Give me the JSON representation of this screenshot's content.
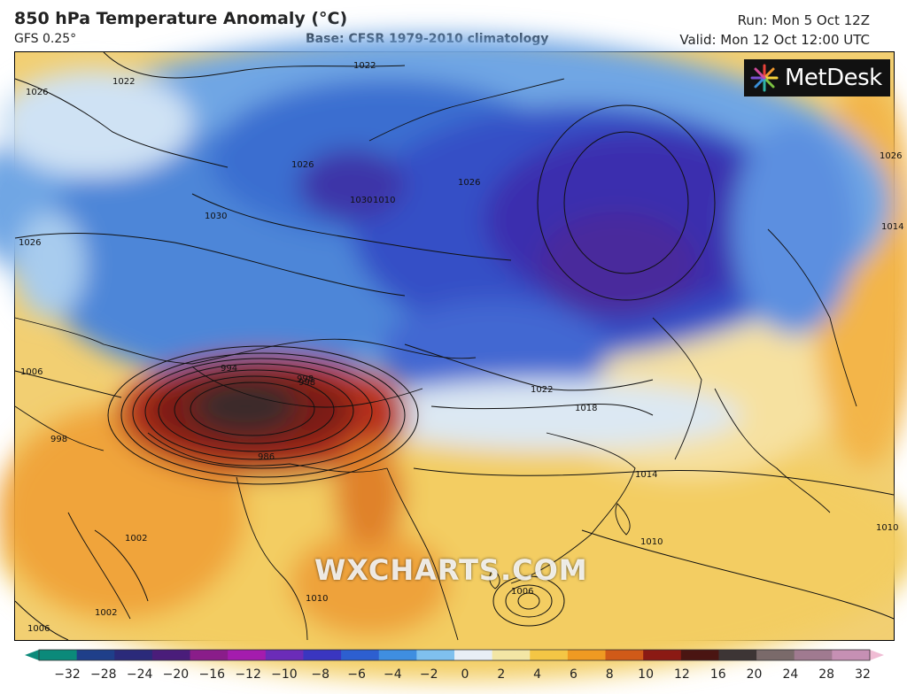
{
  "header": {
    "title": "850 hPa Temperature Anomaly (°C)",
    "model": "GFS 0.25°",
    "base": "Base: CFSR 1979-2010 climatology",
    "run": "Run: Mon 5 Oct 12Z",
    "valid": "Valid: Mon 12 Oct 12:00 UTC"
  },
  "logo": {
    "text": "MetDesk",
    "icon": "metdesk-burst-icon"
  },
  "watermark": "WXCHARTS.COM",
  "isobar_labels": [
    "1022",
    "1022",
    "1026",
    "1026",
    "1030",
    "1030",
    "1026",
    "1026",
    "1026",
    "1022",
    "1018",
    "1014",
    "1010",
    "1010",
    "1010",
    "1014",
    "1006",
    "998",
    "1002",
    "1002",
    "1006",
    "1006",
    "998",
    "994",
    "998",
    "986",
    "1010"
  ],
  "colorbar": {
    "ticks": [
      "−32",
      "−28",
      "−24",
      "−20",
      "−16",
      "−12",
      "−10",
      "−8",
      "−6",
      "−4",
      "−2",
      "0",
      "2",
      "4",
      "6",
      "8",
      "10",
      "12",
      "16",
      "20",
      "24",
      "28",
      "32"
    ],
    "colors": [
      "#0b8a7a",
      "#1f3f8a",
      "#2b2a7a",
      "#4a1d7a",
      "#8a1d8a",
      "#a41cae",
      "#6b2cb8",
      "#3a36c0",
      "#2d5fd0",
      "#3f8ee0",
      "#7fc0ee",
      "#e8eef6",
      "#f3e6a5",
      "#f4c645",
      "#ef9a22",
      "#d05a18",
      "#8b1a14",
      "#4a1512",
      "#3d3535",
      "#7a6a6a",
      "#a07a90",
      "#c690b4",
      "#f0bcd4"
    ]
  }
}
